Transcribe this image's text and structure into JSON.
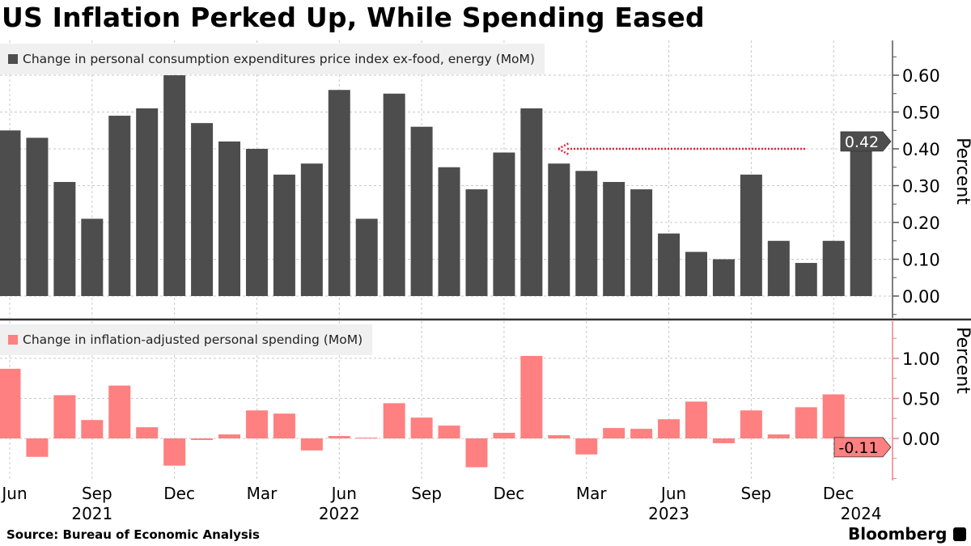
{
  "title": "US Inflation Perked Up, While Spending Eased",
  "source": "Source:  Bureau of Economic Analysis",
  "logo": "Bloomberg",
  "colors": {
    "top_bars": "#4d4d4d",
    "bottom_bars": "#ff8080",
    "arrow": "#e8203a",
    "grid": "#c8c8c8"
  },
  "chart_data": [
    {
      "type": "bar",
      "legend": "Change in personal consumption expenditures price index ex-food, energy (MoM)",
      "ylabel": "Percent",
      "ylim": [
        -0.05,
        0.68
      ],
      "yticks": [
        "0.00",
        "0.10",
        "0.20",
        "0.30",
        "0.40",
        "0.50",
        "0.60"
      ],
      "last_value_label": "0.42",
      "annotation": "dotted red arrow pointing left at 0.40 level",
      "x": [
        "2021-06",
        "2021-07",
        "2021-08",
        "2021-09",
        "2021-10",
        "2021-11",
        "2021-12",
        "2022-01",
        "2022-02",
        "2022-03",
        "2022-04",
        "2022-05",
        "2022-06",
        "2022-07",
        "2022-08",
        "2022-09",
        "2022-10",
        "2022-11",
        "2022-12",
        "2023-01",
        "2023-02",
        "2023-03",
        "2023-04",
        "2023-05",
        "2023-06",
        "2023-07",
        "2023-08",
        "2023-09",
        "2023-10",
        "2023-11",
        "2023-12",
        "2024-01"
      ],
      "values": [
        0.45,
        0.43,
        0.31,
        0.21,
        0.49,
        0.51,
        0.6,
        0.47,
        0.42,
        0.4,
        0.33,
        0.36,
        0.56,
        0.21,
        0.55,
        0.46,
        0.35,
        0.29,
        0.39,
        0.51,
        0.36,
        0.34,
        0.31,
        0.29,
        0.17,
        0.12,
        0.1,
        0.33,
        0.15,
        0.09,
        0.15,
        0.42
      ]
    },
    {
      "type": "bar",
      "legend": "Change in inflation-adjusted personal spending (MoM)",
      "ylabel": "Percent",
      "ylim": [
        -0.5,
        1.4
      ],
      "yticks": [
        "0.00",
        "0.50",
        "1.00"
      ],
      "last_value_label": "-0.11",
      "x": [
        "2021-06",
        "2021-07",
        "2021-08",
        "2021-09",
        "2021-10",
        "2021-11",
        "2021-12",
        "2022-01",
        "2022-02",
        "2022-03",
        "2022-04",
        "2022-05",
        "2022-06",
        "2022-07",
        "2022-08",
        "2022-09",
        "2022-10",
        "2022-11",
        "2022-12",
        "2023-01",
        "2023-02",
        "2023-03",
        "2023-04",
        "2023-05",
        "2023-06",
        "2023-07",
        "2023-08",
        "2023-09",
        "2023-10",
        "2023-11",
        "2023-12",
        "2024-01"
      ],
      "values": [
        0.87,
        -0.23,
        0.54,
        0.23,
        0.66,
        0.14,
        -0.34,
        -0.02,
        0.05,
        0.35,
        0.31,
        -0.15,
        0.03,
        0.01,
        0.44,
        0.26,
        0.16,
        -0.36,
        0.07,
        1.03,
        0.04,
        -0.2,
        0.13,
        0.12,
        0.24,
        0.46,
        -0.06,
        0.35,
        0.05,
        0.39,
        0.55,
        -0.11
      ]
    }
  ],
  "xaxis": {
    "month_ticks": [
      {
        "i": 0,
        "label": "Jun"
      },
      {
        "i": 3,
        "label": "Sep"
      },
      {
        "i": 6,
        "label": "Dec"
      },
      {
        "i": 9,
        "label": "Mar"
      },
      {
        "i": 12,
        "label": "Jun"
      },
      {
        "i": 15,
        "label": "Sep"
      },
      {
        "i": 18,
        "label": "Dec"
      },
      {
        "i": 21,
        "label": "Mar"
      },
      {
        "i": 24,
        "label": "Jun"
      },
      {
        "i": 27,
        "label": "Sep"
      },
      {
        "i": 30,
        "label": "Dec"
      }
    ],
    "year_ticks": [
      {
        "i": 3,
        "label": "2021"
      },
      {
        "i": 12,
        "label": "2022"
      },
      {
        "i": 24,
        "label": "2023"
      },
      {
        "i": 31,
        "label": "2024"
      }
    ]
  }
}
